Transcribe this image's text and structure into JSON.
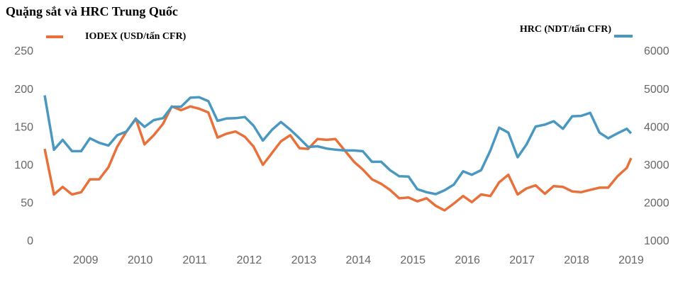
{
  "chart_data": {
    "type": "line",
    "title": "Quặng sắt và HRC Trung Quốc",
    "x": [
      2008.25,
      2008.42,
      2008.58,
      2008.75,
      2008.92,
      2009.08,
      2009.25,
      2009.42,
      2009.58,
      2009.75,
      2009.92,
      2010.08,
      2010.25,
      2010.42,
      2010.58,
      2010.75,
      2010.92,
      2011.08,
      2011.25,
      2011.42,
      2011.58,
      2011.75,
      2011.92,
      2012.08,
      2012.25,
      2012.42,
      2012.58,
      2012.75,
      2012.92,
      2013.08,
      2013.25,
      2013.42,
      2013.58,
      2013.75,
      2013.92,
      2014.08,
      2014.25,
      2014.42,
      2014.58,
      2014.75,
      2014.92,
      2015.08,
      2015.25,
      2015.42,
      2015.58,
      2015.75,
      2015.92,
      2016.08,
      2016.25,
      2016.42,
      2016.58,
      2016.75,
      2016.92,
      2017.08,
      2017.25,
      2017.42,
      2017.58,
      2017.75,
      2017.92,
      2018.08,
      2018.25,
      2018.42,
      2018.58,
      2018.75,
      2018.92,
      2019.0
    ],
    "series": [
      {
        "name": "IODEX (USD/tấn CFR)",
        "color": "#e8703a",
        "axis": "y",
        "values": [
          122,
          62,
          72,
          62,
          65,
          82,
          82,
          98,
          125,
          145,
          162,
          128,
          140,
          155,
          178,
          173,
          178,
          175,
          170,
          137,
          142,
          145,
          138,
          125,
          101,
          117,
          132,
          140,
          123,
          122,
          135,
          134,
          135,
          120,
          105,
          95,
          82,
          76,
          68,
          57,
          58,
          53,
          57,
          47,
          41,
          50,
          60,
          52,
          62,
          60,
          78,
          88,
          62,
          70,
          74,
          63,
          73,
          72,
          66,
          65,
          68,
          71,
          71,
          86,
          97,
          110
        ]
      },
      {
        "name": "HRC (NDT/tấn CFR)",
        "color": "#4a98c0",
        "axis": "y2",
        "values": [
          4850,
          3420,
          3680,
          3380,
          3380,
          3720,
          3600,
          3530,
          3800,
          3900,
          4230,
          4020,
          4200,
          4250,
          4550,
          4550,
          4790,
          4800,
          4700,
          4180,
          4240,
          4250,
          4280,
          4050,
          3660,
          3950,
          4150,
          3950,
          3720,
          3490,
          3510,
          3450,
          3420,
          3400,
          3400,
          3380,
          3100,
          3100,
          2880,
          2720,
          2710,
          2380,
          2300,
          2250,
          2350,
          2500,
          2850,
          2760,
          2880,
          3400,
          4000,
          3870,
          3220,
          3550,
          4030,
          4080,
          4170,
          3970,
          4300,
          4310,
          4390,
          3870,
          3720,
          3850,
          3970,
          3850
        ]
      }
    ],
    "xlim": [
      2008.25,
      2019.04
    ],
    "xticks": [
      2009,
      2010,
      2011,
      2012,
      2013,
      2014,
      2015,
      2016,
      2017,
      2018,
      2019
    ],
    "ylim": [
      0,
      250
    ],
    "yticks": [
      0,
      50,
      100,
      150,
      200,
      250
    ],
    "y2lim": [
      1000,
      6000
    ],
    "y2ticks": [
      1000,
      2000,
      3000,
      4000,
      5000,
      6000
    ]
  }
}
